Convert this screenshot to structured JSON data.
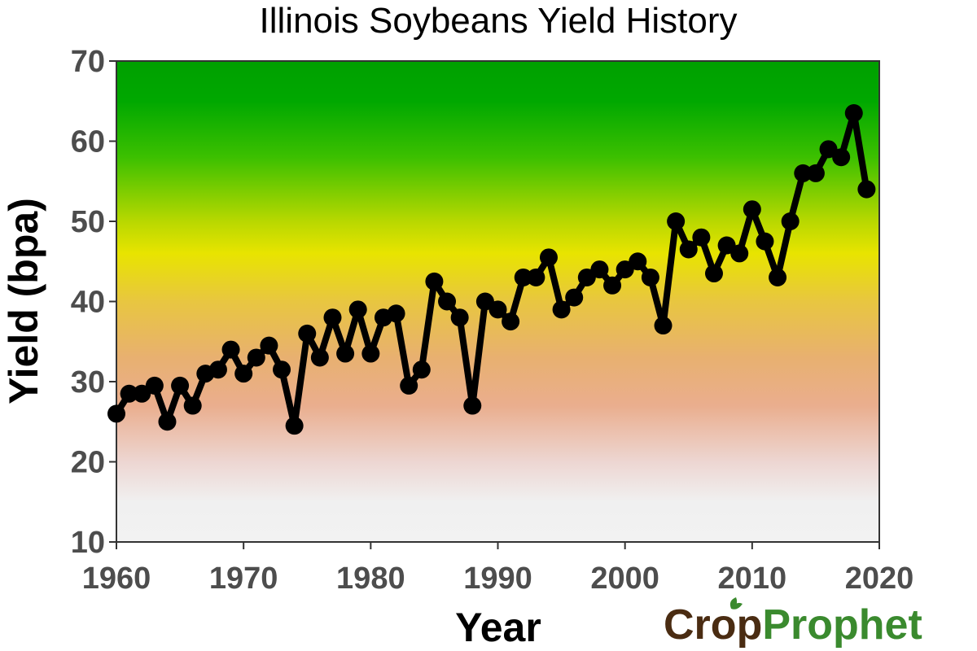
{
  "chart_data": {
    "type": "line",
    "title": "Illinois Soybeans Yield History",
    "xlabel": "Year",
    "ylabel": "Yield (bpa)",
    "xlim": [
      1960,
      2020
    ],
    "ylim": [
      10,
      70
    ],
    "x_ticks": [
      1960,
      1970,
      1980,
      1990,
      2000,
      2010,
      2020
    ],
    "y_ticks": [
      10,
      20,
      30,
      40,
      50,
      60,
      70
    ],
    "grid": false,
    "legend": "none",
    "background_gradient": [
      {
        "value": 70,
        "color": "#00a000"
      },
      {
        "value": 65,
        "color": "#00a800"
      },
      {
        "value": 58,
        "color": "#3cc000"
      },
      {
        "value": 50,
        "color": "#b8d800"
      },
      {
        "value": 46,
        "color": "#e8e400"
      },
      {
        "value": 40,
        "color": "#e8c640"
      },
      {
        "value": 33,
        "color": "#e8b070"
      },
      {
        "value": 27,
        "color": "#eaae8e"
      },
      {
        "value": 20,
        "color": "#edd6d2"
      },
      {
        "value": 15,
        "color": "#f0f0f0"
      },
      {
        "value": 10,
        "color": "#f2f2f2"
      }
    ],
    "line_color": "#000000",
    "series": [
      {
        "x": [
          1960,
          1961,
          1962,
          1963,
          1964,
          1965,
          1966,
          1967,
          1968,
          1969,
          1970,
          1971,
          1972,
          1973,
          1974,
          1975,
          1976,
          1977,
          1978,
          1979,
          1980,
          1981,
          1982,
          1983,
          1984,
          1985,
          1986,
          1987,
          1988,
          1989,
          1990,
          1991,
          1992,
          1993,
          1994,
          1995,
          1996,
          1997,
          1998,
          1999,
          2000,
          2001,
          2002,
          2003,
          2004,
          2005,
          2006,
          2007,
          2008,
          2009,
          2010,
          2011,
          2012,
          2013,
          2014,
          2015,
          2016,
          2017,
          2018,
          2019
        ],
        "values": [
          26,
          28.5,
          28.5,
          29.5,
          25,
          29.5,
          27,
          31,
          31.5,
          34,
          31,
          33,
          34.5,
          31.5,
          24.5,
          36,
          33,
          38,
          33.5,
          39,
          33.5,
          38,
          38.5,
          29.5,
          31.5,
          42.5,
          40,
          38,
          27,
          40,
          39,
          37.5,
          43,
          43,
          45.5,
          39,
          40.5,
          43,
          44,
          42,
          44,
          45,
          43,
          37,
          50,
          46.5,
          48,
          43.5,
          47,
          46,
          51.5,
          47.5,
          43,
          50,
          56,
          56,
          59,
          58,
          63.5,
          54
        ]
      }
    ]
  },
  "logo": {
    "text_crop": "Cr",
    "text_o": "o",
    "text_p": "p",
    "text_prophet": "Prophet"
  }
}
